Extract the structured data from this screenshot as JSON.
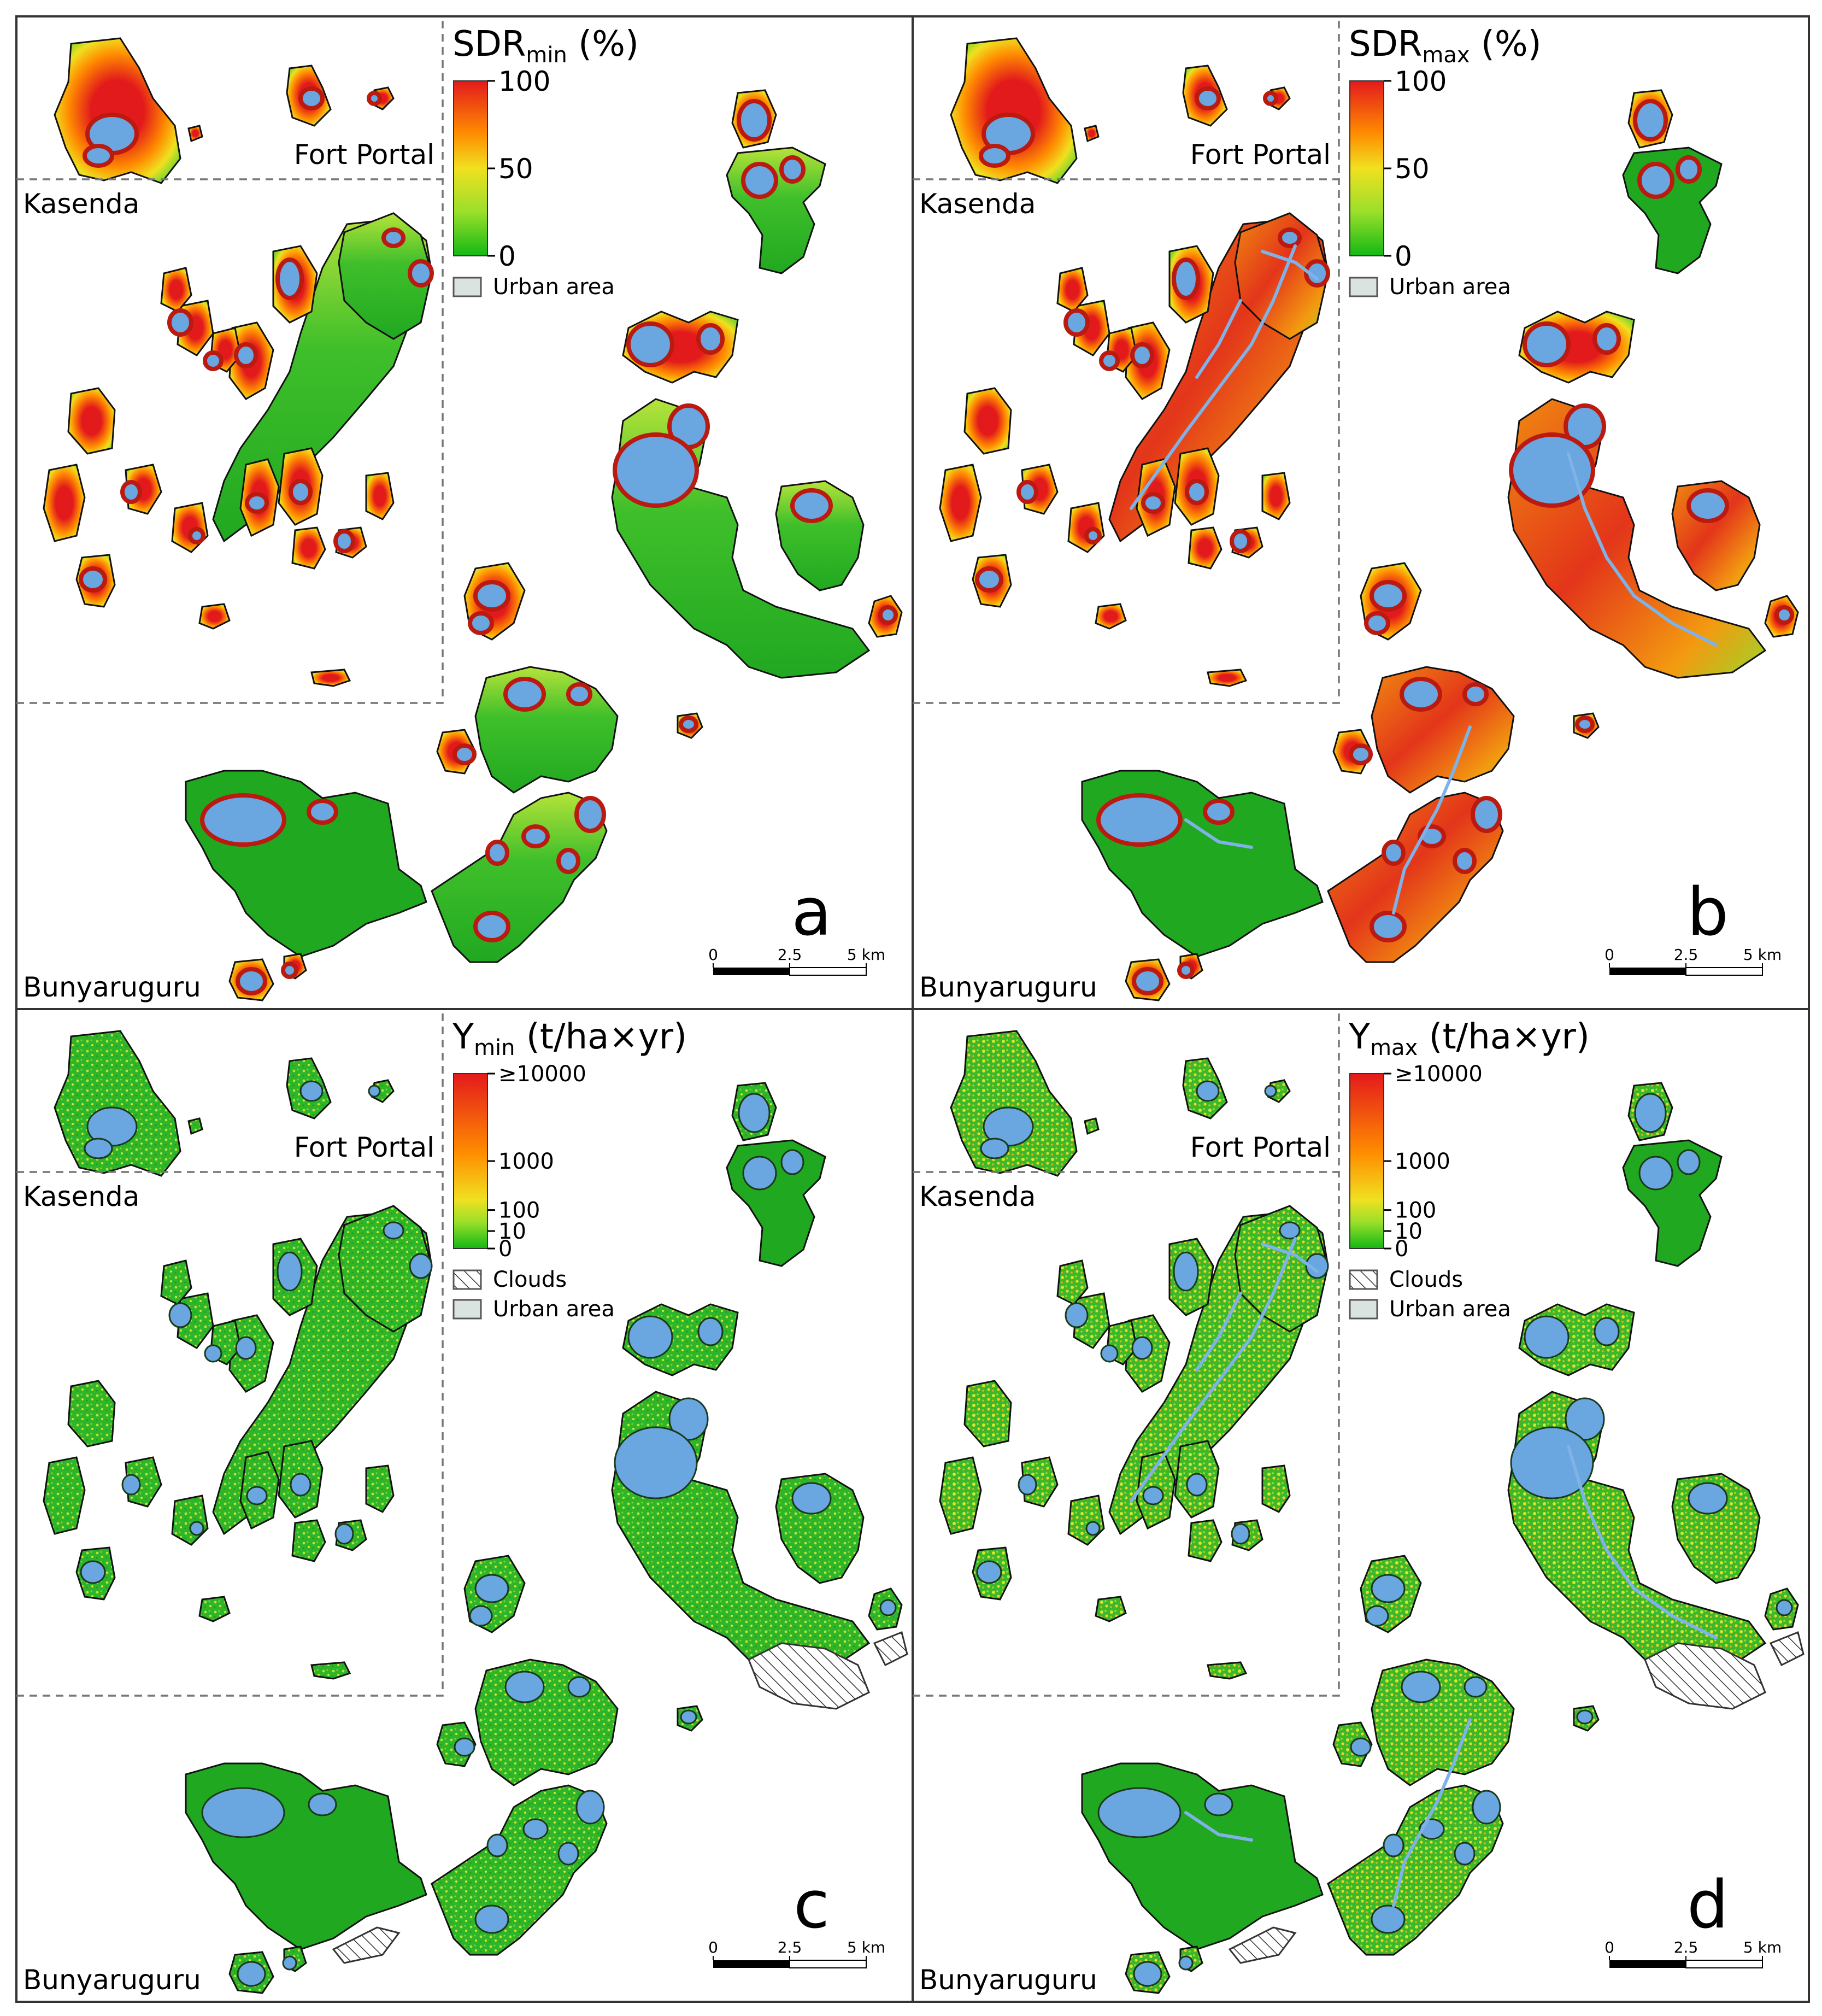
{
  "figure": {
    "panels": [
      {
        "id": "a",
        "letter": "a",
        "legend": {
          "title_main": "SDR",
          "title_sub": "min",
          "title_unit": " (%)",
          "ticks": [
            "100",
            "50",
            "0"
          ],
          "items": [
            {
              "label": "Urban area",
              "swatch": "urban"
            }
          ]
        },
        "regions": {
          "top": "Fort Portal",
          "middle": "Kasenda",
          "bottom": "Bunyaruguru"
        },
        "scalebar": {
          "ticks": [
            "0",
            "2.5",
            "5 km"
          ]
        }
      },
      {
        "id": "b",
        "letter": "b",
        "legend": {
          "title_main": "SDR",
          "title_sub": "max",
          "title_unit": " (%)",
          "ticks": [
            "100",
            "50",
            "0"
          ],
          "items": [
            {
              "label": "Urban area",
              "swatch": "urban"
            }
          ]
        },
        "regions": {
          "top": "Fort Portal",
          "middle": "Kasenda",
          "bottom": "Bunyaruguru"
        },
        "scalebar": {
          "ticks": [
            "0",
            "2.5",
            "5 km"
          ]
        }
      },
      {
        "id": "c",
        "letter": "c",
        "legend": {
          "title_main": "Y",
          "title_sub": "min",
          "title_unit": " (t/ha×yr)",
          "ticks": [
            "≥10000",
            "1000",
            "100",
            "10",
            "0"
          ],
          "items": [
            {
              "label": "Clouds",
              "swatch": "clouds"
            },
            {
              "label": "Urban area",
              "swatch": "urban"
            }
          ]
        },
        "regions": {
          "top": "Fort Portal",
          "middle": "Kasenda",
          "bottom": "Bunyaruguru"
        },
        "scalebar": {
          "ticks": [
            "0",
            "2.5",
            "5 km"
          ]
        }
      },
      {
        "id": "d",
        "letter": "d",
        "legend": {
          "title_main": "Y",
          "title_sub": "max",
          "title_unit": " (t/ha×yr)",
          "ticks": [
            "≥10000",
            "1000",
            "100",
            "10",
            "0"
          ],
          "items": [
            {
              "label": "Clouds",
              "swatch": "clouds"
            },
            {
              "label": "Urban area",
              "swatch": "urban"
            }
          ]
        },
        "regions": {
          "top": "Fort Portal",
          "middle": "Kasenda",
          "bottom": "Bunyaruguru"
        },
        "scalebar": {
          "ticks": [
            "0",
            "2.5",
            "5 km"
          ]
        }
      }
    ],
    "colors": {
      "ramp_high": "#e31a1c",
      "ramp_mid_high": "#ff8c00",
      "ramp_mid": "#f0e020",
      "ramp_low": "#1fbf1f",
      "low_fill": "#21a821",
      "lake": "#6aa6e0",
      "lake_rim": "#bb1a10",
      "river": "#7fb2e6",
      "urban": "#dbe3e0"
    }
  }
}
